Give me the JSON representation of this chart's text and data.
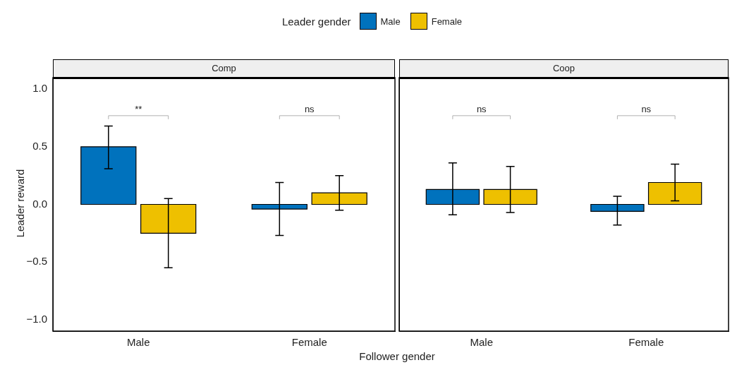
{
  "chart_data": [
    {
      "type": "bar",
      "title": "Comp",
      "xlabel": "Follower gender",
      "ylabel": "Leader reward",
      "legend_title": "Leader gender",
      "legend": "top",
      "categories": [
        "Male",
        "Female"
      ],
      "series": [
        {
          "name": "Male",
          "color": "#0072bd",
          "values": [
            0.5,
            -0.04
          ],
          "errors": [
            [
              0.31,
              0.68
            ],
            [
              -0.27,
              0.19
            ]
          ]
        },
        {
          "name": "Female",
          "color": "#eec000",
          "values": [
            -0.25,
            0.1
          ],
          "errors": [
            [
              -0.55,
              0.05
            ],
            [
              -0.05,
              0.25
            ]
          ]
        }
      ],
      "ylim": [
        -1.1,
        1.1
      ],
      "yticks": [
        {
          "value": 1,
          "label": "1.0"
        },
        {
          "value": 0.5,
          "label": "0.5"
        },
        {
          "value": 0,
          "label": "0.0"
        },
        {
          "value": -0.5,
          "label": "−0.5"
        },
        {
          "value": -1,
          "label": "−1.0"
        }
      ],
      "annotations": [
        "**",
        "ns"
      ]
    },
    {
      "type": "bar",
      "title": "Coop",
      "categories": [
        "Male",
        "Female"
      ],
      "tick_labels": "x",
      "series": [
        {
          "color": "#0072bd",
          "values": [
            0.13,
            -0.06
          ],
          "errors": [
            [
              -0.09,
              0.36
            ],
            [
              -0.18,
              0.07
            ]
          ]
        },
        {
          "color": "#eec000",
          "values": [
            0.13,
            0.19
          ],
          "errors": [
            [
              -0.07,
              0.33
            ],
            [
              0.03,
              0.35
            ]
          ]
        }
      ],
      "ylim": [
        -1.1,
        1.1
      ],
      "annotations": [
        "ns",
        "ns"
      ]
    }
  ]
}
